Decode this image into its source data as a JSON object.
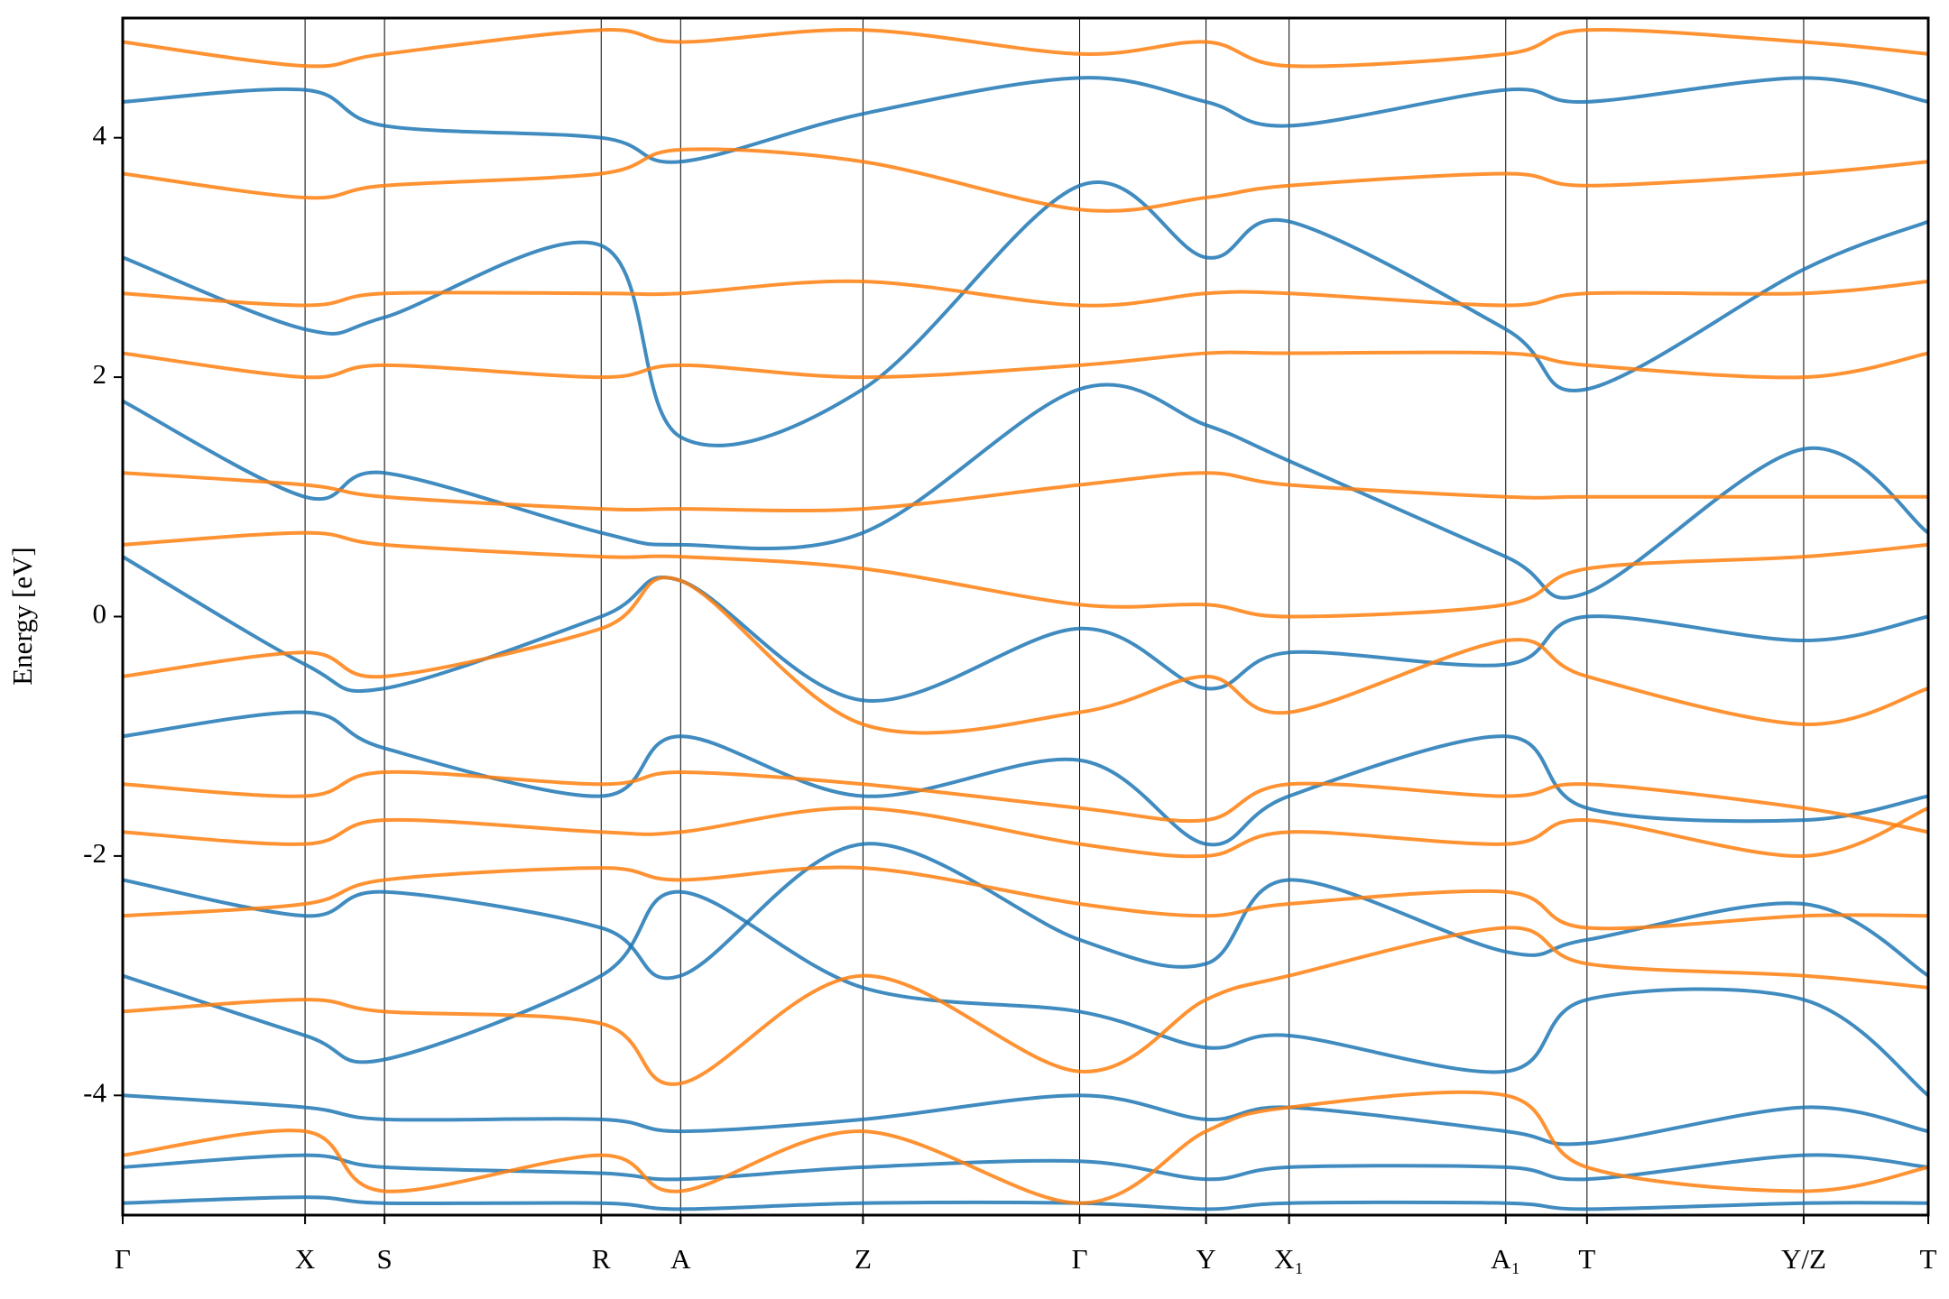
{
  "chart_data": {
    "type": "line",
    "y_label": "Energy [eV]",
    "x": [
      0,
      0.101,
      0.145,
      0.265,
      0.309,
      0.41,
      0.53,
      0.6,
      0.646,
      0.766,
      0.811,
      0.931,
      1
    ],
    "xlim": [
      0,
      1
    ],
    "xticks": [
      {
        "value": 0,
        "label": "Γ"
      },
      {
        "value": 0.101,
        "label": "X"
      },
      {
        "value": 0.145,
        "label": "S"
      },
      {
        "value": 0.265,
        "label": "R"
      },
      {
        "value": 0.309,
        "label": "A"
      },
      {
        "value": 0.41,
        "label": "Z"
      },
      {
        "value": 0.53,
        "label": "Γ"
      },
      {
        "value": 0.6,
        "label": "Y"
      },
      {
        "value": 0.646,
        "label": "X₁"
      },
      {
        "value": 0.766,
        "label": "A₁"
      },
      {
        "value": 0.811,
        "label": "T"
      },
      {
        "value": 0.931,
        "label": "Y/Z"
      },
      {
        "value": 1,
        "label": "T"
      }
    ],
    "ylim": [
      -5,
      5
    ],
    "yticks": [
      -4,
      -2,
      0,
      2,
      4
    ],
    "series": [
      {
        "color": "#1f77b4",
        "values": [
          -4.9,
          -4.85,
          -4.9,
          -4.9,
          -4.95,
          -4.9,
          -4.9,
          -4.95,
          -4.9,
          -4.9,
          -4.95,
          -4.9,
          -4.9
        ]
      },
      {
        "color": "#1f77b4",
        "values": [
          -4.6,
          -4.5,
          -4.6,
          -4.65,
          -4.7,
          -4.6,
          -4.55,
          -4.7,
          -4.6,
          -4.6,
          -4.7,
          -4.5,
          -4.6
        ]
      },
      {
        "color": "#1f77b4",
        "values": [
          -4.0,
          -4.1,
          -4.2,
          -4.2,
          -4.3,
          -4.2,
          -4.0,
          -4.2,
          -4.1,
          -4.3,
          -4.4,
          -4.1,
          -4.3
        ]
      },
      {
        "color": "#1f77b4",
        "values": [
          -3.0,
          -3.5,
          -3.7,
          -3.0,
          -2.3,
          -3.1,
          -3.3,
          -3.6,
          -3.5,
          -3.8,
          -3.2,
          -3.2,
          -4.0
        ]
      },
      {
        "color": "#1f77b4",
        "values": [
          -2.2,
          -2.5,
          -2.3,
          -2.6,
          -3.0,
          -1.9,
          -2.7,
          -2.9,
          -2.2,
          -2.8,
          -2.7,
          -2.4,
          -3.0
        ]
      },
      {
        "color": "#1f77b4",
        "values": [
          -1.0,
          -0.8,
          -1.1,
          -1.5,
          -1.0,
          -1.5,
          -1.2,
          -1.9,
          -1.5,
          -1.0,
          -1.6,
          -1.7,
          -1.5
        ]
      },
      {
        "color": "#1f77b4",
        "values": [
          0.5,
          -0.4,
          -0.6,
          0.0,
          0.3,
          -0.7,
          -0.1,
          -0.6,
          -0.3,
          -0.4,
          0.0,
          -0.2,
          0.0
        ]
      },
      {
        "color": "#1f77b4",
        "values": [
          1.8,
          1.0,
          1.2,
          0.7,
          0.6,
          0.7,
          1.9,
          1.6,
          1.3,
          0.5,
          0.2,
          1.4,
          0.7
        ]
      },
      {
        "color": "#1f77b4",
        "values": [
          3.0,
          2.4,
          2.5,
          3.1,
          1.5,
          1.9,
          3.6,
          3.0,
          3.3,
          2.4,
          1.9,
          2.9,
          3.3
        ]
      },
      {
        "color": "#1f77b4",
        "values": [
          4.3,
          4.4,
          4.1,
          4.0,
          3.8,
          4.2,
          4.5,
          4.3,
          4.1,
          4.4,
          4.3,
          4.5,
          4.3
        ]
      },
      {
        "color": "#ff7f0e",
        "values": [
          -4.5,
          -4.3,
          -4.8,
          -4.5,
          -4.8,
          -4.3,
          -4.9,
          -4.3,
          -4.1,
          -4.0,
          -4.6,
          -4.8,
          -4.6
        ]
      },
      {
        "color": "#ff7f0e",
        "values": [
          -3.3,
          -3.2,
          -3.3,
          -3.4,
          -3.9,
          -3.0,
          -3.8,
          -3.2,
          -3.0,
          -2.6,
          -2.9,
          -3.0,
          -3.1
        ]
      },
      {
        "color": "#ff7f0e",
        "values": [
          -2.5,
          -2.4,
          -2.2,
          -2.1,
          -2.2,
          -2.1,
          -2.4,
          -2.5,
          -2.4,
          -2.3,
          -2.6,
          -2.5,
          -2.5
        ]
      },
      {
        "color": "#ff7f0e",
        "values": [
          -1.8,
          -1.9,
          -1.7,
          -1.8,
          -1.8,
          -1.6,
          -1.9,
          -2.0,
          -1.8,
          -1.9,
          -1.7,
          -2.0,
          -1.6
        ]
      },
      {
        "color": "#ff7f0e",
        "values": [
          -1.4,
          -1.5,
          -1.3,
          -1.4,
          -1.3,
          -1.4,
          -1.6,
          -1.7,
          -1.4,
          -1.5,
          -1.4,
          -1.6,
          -1.8
        ]
      },
      {
        "color": "#ff7f0e",
        "values": [
          -0.5,
          -0.3,
          -0.5,
          -0.1,
          0.3,
          -0.9,
          -0.8,
          -0.5,
          -0.8,
          -0.2,
          -0.5,
          -0.9,
          -0.6
        ]
      },
      {
        "color": "#ff7f0e",
        "values": [
          0.6,
          0.7,
          0.6,
          0.5,
          0.5,
          0.4,
          0.1,
          0.1,
          0.0,
          0.1,
          0.4,
          0.5,
          0.6
        ]
      },
      {
        "color": "#ff7f0e",
        "values": [
          1.2,
          1.1,
          1.0,
          0.9,
          0.9,
          0.9,
          1.1,
          1.2,
          1.1,
          1.0,
          1.0,
          1.0,
          1.0
        ]
      },
      {
        "color": "#ff7f0e",
        "values": [
          2.2,
          2.0,
          2.1,
          2.0,
          2.1,
          2.0,
          2.1,
          2.2,
          2.2,
          2.2,
          2.1,
          2.0,
          2.2
        ]
      },
      {
        "color": "#ff7f0e",
        "values": [
          2.7,
          2.6,
          2.7,
          2.7,
          2.7,
          2.8,
          2.6,
          2.7,
          2.7,
          2.6,
          2.7,
          2.7,
          2.8
        ]
      },
      {
        "color": "#ff7f0e",
        "values": [
          3.7,
          3.5,
          3.6,
          3.7,
          3.9,
          3.8,
          3.4,
          3.5,
          3.6,
          3.7,
          3.6,
          3.7,
          3.8
        ]
      },
      {
        "color": "#ff7f0e",
        "values": [
          4.8,
          4.6,
          4.7,
          4.9,
          4.8,
          4.9,
          4.7,
          4.8,
          4.6,
          4.7,
          4.9,
          4.8,
          4.7
        ]
      }
    ]
  }
}
